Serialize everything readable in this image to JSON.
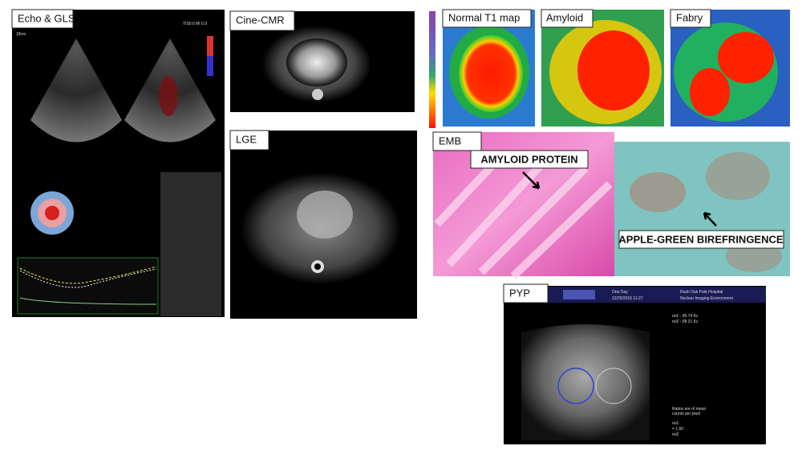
{
  "panels": {
    "echo": {
      "label": "Echo & GLS",
      "depth": "18cm",
      "index": "TIS0.6  MI 0.9"
    },
    "cine": {
      "label": "Cine-CMR"
    },
    "lge": {
      "label": "LGE"
    },
    "t1": [
      {
        "label": "Normal T1 map"
      },
      {
        "label": "Amyloid"
      },
      {
        "label": "Fabry"
      }
    ],
    "emb": {
      "label": "EMB",
      "left_annotation": "AMYLOID PROTEIN",
      "right_annotation": "APPLE-GREEN BIREFRINGENCE"
    },
    "pyp": {
      "label": "PYP",
      "study": "One Day",
      "date": "12/25/2016 11:27",
      "hospital": "Rush Oak Park Hospital",
      "system": "Nuclear Imaging Environment",
      "roi_lines": [
        "roi1 - 95.74 Kc",
        "roi2 - 58.21 Kc"
      ],
      "ratio_note": [
        "Ratios are of mean",
        "counts per pixel"
      ],
      "ratio_lines": [
        "roi1",
        "= 1.60",
        "roi2"
      ]
    }
  }
}
